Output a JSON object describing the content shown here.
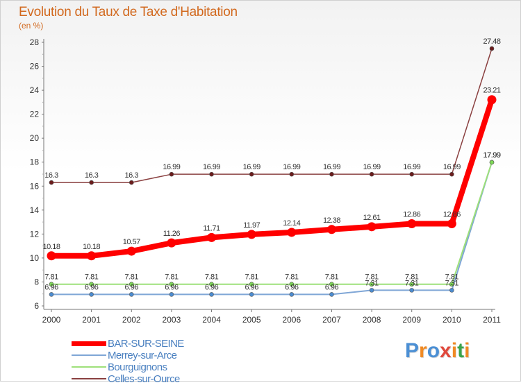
{
  "title": "Evolution du Taux de Taxe d'Habitation",
  "subtitle": "(en %)",
  "brand": {
    "text": "Proxiti",
    "letters": [
      "P",
      "r",
      "o",
      "x",
      "i",
      "t",
      "i"
    ],
    "colors": [
      "#4b8fd4",
      "#f08a24",
      "#4b8fd4",
      "#e0483c",
      "#f08a24",
      "#3aa34a",
      "#f08a24"
    ]
  },
  "chart_data": {
    "type": "line",
    "title": "Evolution du Taux de Taxe d'Habitation",
    "ylabel": "(en %)",
    "xlabel": "",
    "ylim": [
      6,
      28
    ],
    "yticks": [
      6,
      8,
      10,
      12,
      14,
      16,
      18,
      20,
      22,
      24,
      26,
      28
    ],
    "grid": false,
    "legend_position": "bottom-left",
    "x": [
      "2000",
      "2001",
      "2002",
      "2003",
      "2004",
      "2005",
      "2006",
      "2007",
      "2008",
      "2009",
      "2010",
      "2011"
    ],
    "series": [
      {
        "name": "BAR-SUR-SEINE",
        "color": "#ff0000",
        "marker_color": "#ff0000",
        "values": [
          10.18,
          10.18,
          10.57,
          11.26,
          11.71,
          11.97,
          12.14,
          12.38,
          12.61,
          12.86,
          12.86,
          23.21
        ],
        "labels": [
          "10.18",
          "10.18",
          "10.57",
          "11.26",
          "11.71",
          "11.97",
          "12.14",
          "12.38",
          "12.61",
          "12.86",
          "12.86",
          "23.21"
        ]
      },
      {
        "name": "Merrey-sur-Arce",
        "color": "#7fa6d6",
        "marker_color": "#4c8cd0",
        "values": [
          6.96,
          6.96,
          6.96,
          6.96,
          6.96,
          6.96,
          6.96,
          6.96,
          7.31,
          7.31,
          7.31,
          17.99
        ],
        "labels": [
          "6.96",
          "6.96",
          "6.96",
          "6.96",
          "6.96",
          "6.96",
          "6.96",
          "6.96",
          "7.31",
          "7.31",
          "7.31",
          "17.99"
        ]
      },
      {
        "name": "Bourguignons",
        "color": "#9ee07a",
        "marker_color": "#7ed957",
        "values": [
          7.81,
          7.81,
          7.81,
          7.81,
          7.81,
          7.81,
          7.81,
          7.81,
          7.81,
          7.81,
          7.81,
          17.99
        ],
        "labels": [
          "7.81",
          "7.81",
          "7.81",
          "7.81",
          "7.81",
          "7.81",
          "7.81",
          "7.81",
          "7.81",
          "7.81",
          "7.81",
          "17.99"
        ]
      },
      {
        "name": "Celles-sur-Ource",
        "color": "#8a4040",
        "marker_color": "#6b1c1c",
        "values": [
          16.3,
          16.3,
          16.3,
          16.99,
          16.99,
          16.99,
          16.99,
          16.99,
          16.99,
          16.99,
          16.99,
          27.48
        ],
        "labels": [
          "16.3",
          "16.3",
          "16.3",
          "16.99",
          "16.99",
          "16.99",
          "16.99",
          "16.99",
          "16.99",
          "16.99",
          "16.99",
          "27.48"
        ]
      }
    ]
  }
}
